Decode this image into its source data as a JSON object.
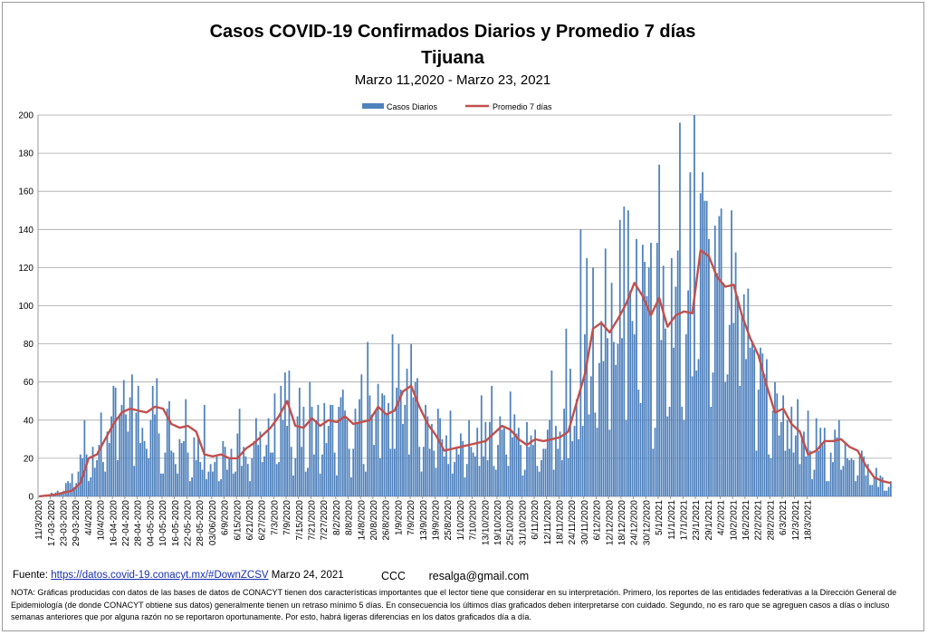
{
  "header": {
    "title_line1": "Casos COVID-19  Confirmados Diarios y Promedio 7 días",
    "title_line2": "Tijuana",
    "subtitle": "Marzo 11,2020 - Marzo 23, 2021"
  },
  "footer": {
    "source_label": "Fuente:",
    "source_link": "https://datos.covid-19.conacyt.mx/#DownZCSV",
    "source_date": "Marzo 24, 2021",
    "credit_initials": "CCC",
    "credit_email": "resalga@gmail.com",
    "note": "NOTA: Gráficas producidas con datos de las bases de datos de CONACYT tienen dos características importantes que el lector tiene que considerar en su interpretación. Primero, los reportes de las entidades federativas a la Dirección General de Epidemiología (de donde CONACYT obtiene sus datos) generalmente tienen un retraso mínimo 5 días. En consecuencia los últimos días graficados deben interpretarse con cuidado. Segundo, no es raro que se agreguen casos a días o incluso semanas anteriores que por alguna razón no se reportaron oportunamente. Por esto, habrá ligeras diferencias en los datos graficados día a día."
  },
  "colors": {
    "bars": "#4f81bd",
    "line": "#c0504d",
    "grid": "#a6a6a6"
  },
  "chart_data": {
    "type": "bar",
    "title": "Casos COVID-19  Confirmados Diarios y Promedio 7 días",
    "subtitle": "Marzo 11,2020 - Marzo 23, 2021",
    "xlabel": "",
    "ylabel": "",
    "ylim": [
      0,
      200
    ],
    "yticks": [
      0,
      20,
      40,
      60,
      80,
      100,
      120,
      140,
      160,
      180,
      200
    ],
    "grid": true,
    "legend_position": "top-center",
    "x_start": "2020-03-11",
    "x_end": "2021-03-23",
    "x_tick_labels": [
      "11/3/2020",
      "17-03-2020",
      "23-03-2020",
      "29-03-2020",
      "4/4/2020",
      "10/4/2020",
      "16-04-2020",
      "22-04-2020",
      "28-04-2020",
      "04-05-2020",
      "10-05-2020",
      "16-05-2020",
      "22-05-2020",
      "28-05-2020",
      "03/06/2020",
      "6/9/2020",
      "6/15/2020",
      "6/21/2020",
      "6/27/2020",
      "7/3/2020",
      "7/9/2020",
      "7/15/2020",
      "7/21/2020",
      "7/27/2020",
      "8/2/2020",
      "8/8/2020",
      "14/8/2020",
      "20/8/2020",
      "26/8/2020",
      "1/9/2020",
      "7/9/2020",
      "13/9/2020",
      "19/9/2020",
      "25/8/2020",
      "1/10/2020",
      "7/10/2020",
      "13/10/2020",
      "19/10/2020",
      "25/10/2020",
      "31/10/2020",
      "6/11/2020",
      "12/11/2020",
      "18/11/2020",
      "24/11/2020",
      "30/11/2020",
      "6/12/2020",
      "12/12/2020",
      "18/12/2020",
      "24/12/2020",
      "30/12/2020",
      "5/1/2021",
      "11/1/2021",
      "17/1/2021",
      "23/1/2021",
      "29/1/2021",
      "4/2/2021",
      "10/2/2021",
      "16/2/2021",
      "22/2/2021",
      "28/2/2021",
      "6/3/2021",
      "12/3/2021",
      "18/3/2021"
    ],
    "x_tick_interval_days": 6,
    "series": [
      {
        "name": "Casos Diarios",
        "type": "bar",
        "anchors": [
          [
            0,
            0
          ],
          [
            4,
            1
          ],
          [
            8,
            2
          ],
          [
            12,
            4
          ],
          [
            16,
            9
          ],
          [
            20,
            18
          ],
          [
            24,
            26
          ],
          [
            28,
            27
          ],
          [
            32,
            36
          ],
          [
            36,
            42
          ],
          [
            40,
            45
          ],
          [
            44,
            46
          ],
          [
            48,
            44
          ],
          [
            52,
            44
          ],
          [
            56,
            45
          ],
          [
            60,
            37
          ],
          [
            64,
            38
          ],
          [
            68,
            34
          ],
          [
            72,
            33
          ],
          [
            76,
            28
          ],
          [
            80,
            22
          ],
          [
            84,
            21
          ],
          [
            88,
            22
          ],
          [
            92,
            20
          ],
          [
            96,
            25
          ],
          [
            100,
            27
          ],
          [
            104,
            30
          ],
          [
            108,
            34
          ],
          [
            112,
            39
          ],
          [
            116,
            42
          ],
          [
            120,
            48
          ],
          [
            124,
            36
          ],
          [
            128,
            35
          ],
          [
            132,
            39
          ],
          [
            136,
            39
          ],
          [
            140,
            40
          ],
          [
            144,
            40
          ],
          [
            148,
            42
          ],
          [
            152,
            41
          ],
          [
            156,
            38
          ],
          [
            160,
            40
          ],
          [
            164,
            48
          ],
          [
            168,
            44
          ],
          [
            172,
            44
          ],
          [
            176,
            54
          ],
          [
            180,
            58
          ],
          [
            184,
            47
          ],
          [
            188,
            39
          ],
          [
            192,
            33
          ],
          [
            196,
            26
          ],
          [
            200,
            25
          ],
          [
            204,
            26
          ],
          [
            208,
            29
          ],
          [
            212,
            29
          ],
          [
            216,
            28
          ],
          [
            220,
            32
          ],
          [
            224,
            37
          ],
          [
            228,
            36
          ],
          [
            232,
            31
          ],
          [
            236,
            28
          ],
          [
            240,
            31
          ],
          [
            244,
            29
          ],
          [
            248,
            30
          ],
          [
            252,
            31
          ],
          [
            256,
            35
          ],
          [
            260,
            48
          ],
          [
            264,
            64
          ],
          [
            268,
            88
          ],
          [
            272,
            92
          ],
          [
            276,
            84
          ],
          [
            280,
            92
          ],
          [
            284,
            103
          ],
          [
            288,
            113
          ],
          [
            292,
            108
          ],
          [
            296,
            96
          ],
          [
            300,
            105
          ],
          [
            304,
            90
          ],
          [
            308,
            94
          ],
          [
            312,
            99
          ],
          [
            316,
            100
          ],
          [
            320,
            128
          ],
          [
            324,
            128
          ],
          [
            328,
            120
          ],
          [
            332,
            111
          ],
          [
            336,
            110
          ],
          [
            340,
            95
          ],
          [
            344,
            83
          ],
          [
            348,
            74
          ],
          [
            352,
            59
          ],
          [
            356,
            46
          ],
          [
            360,
            44
          ],
          [
            364,
            38
          ],
          [
            368,
            28
          ],
          [
            372,
            22
          ],
          [
            376,
            25
          ],
          [
            380,
            30
          ],
          [
            384,
            28
          ],
          [
            388,
            29
          ],
          [
            392,
            26
          ],
          [
            396,
            23
          ],
          [
            400,
            16
          ],
          [
            404,
            11
          ],
          [
            408,
            8
          ],
          [
            412,
            7
          ]
        ],
        "peaks": [
          [
            22,
            40
          ],
          [
            39,
            43
          ],
          [
            45,
            64
          ],
          [
            48,
            58
          ],
          [
            57,
            62
          ],
          [
            63,
            50
          ],
          [
            71,
            51
          ],
          [
            80,
            48
          ],
          [
            97,
            46
          ],
          [
            114,
            54
          ],
          [
            121,
            66
          ],
          [
            126,
            57
          ],
          [
            131,
            60
          ],
          [
            147,
            56
          ],
          [
            156,
            64
          ],
          [
            159,
            81
          ],
          [
            164,
            59
          ],
          [
            171,
            85
          ],
          [
            174,
            80
          ],
          [
            178,
            67
          ],
          [
            188,
            42
          ],
          [
            193,
            46
          ],
          [
            199,
            45
          ],
          [
            214,
            53
          ],
          [
            219,
            58
          ],
          [
            228,
            55
          ],
          [
            236,
            39
          ],
          [
            248,
            66
          ],
          [
            255,
            88
          ],
          [
            257,
            67
          ],
          [
            262,
            140
          ],
          [
            265,
            125
          ],
          [
            268,
            120
          ],
          [
            274,
            130
          ],
          [
            277,
            112
          ],
          [
            281,
            145
          ],
          [
            283,
            152
          ],
          [
            285,
            150
          ],
          [
            289,
            135
          ],
          [
            292,
            132
          ],
          [
            295,
            120
          ],
          [
            300,
            174
          ],
          [
            302,
            121
          ],
          [
            306,
            125
          ],
          [
            310,
            196
          ],
          [
            315,
            170
          ],
          [
            317,
            200
          ],
          [
            321,
            170
          ],
          [
            323,
            155
          ],
          [
            328,
            117
          ],
          [
            331,
            112
          ],
          [
            337,
            128
          ],
          [
            340,
            95
          ],
          [
            346,
            77
          ],
          [
            351,
            64
          ],
          [
            360,
            53
          ],
          [
            367,
            51
          ],
          [
            372,
            45
          ],
          [
            376,
            41
          ],
          [
            380,
            36
          ],
          [
            386,
            31
          ],
          [
            393,
            20
          ],
          [
            405,
            15
          ]
        ]
      },
      {
        "name": "Promedio 7 días",
        "type": "line",
        "points": [
          [
            0,
            0
          ],
          [
            4,
            0.5
          ],
          [
            8,
            1
          ],
          [
            12,
            2
          ],
          [
            16,
            3
          ],
          [
            20,
            7
          ],
          [
            24,
            20
          ],
          [
            28,
            22
          ],
          [
            32,
            30
          ],
          [
            36,
            38
          ],
          [
            40,
            44
          ],
          [
            44,
            46
          ],
          [
            48,
            45
          ],
          [
            52,
            44
          ],
          [
            56,
            47
          ],
          [
            60,
            46
          ],
          [
            64,
            38
          ],
          [
            68,
            36
          ],
          [
            72,
            37
          ],
          [
            76,
            34
          ],
          [
            80,
            22
          ],
          [
            84,
            21
          ],
          [
            88,
            22
          ],
          [
            92,
            20
          ],
          [
            96,
            20
          ],
          [
            100,
            25
          ],
          [
            104,
            28
          ],
          [
            108,
            32
          ],
          [
            112,
            36
          ],
          [
            116,
            42
          ],
          [
            120,
            50
          ],
          [
            124,
            37
          ],
          [
            128,
            36
          ],
          [
            132,
            41
          ],
          [
            136,
            37
          ],
          [
            140,
            40
          ],
          [
            144,
            39
          ],
          [
            148,
            42
          ],
          [
            152,
            38
          ],
          [
            156,
            39
          ],
          [
            160,
            40
          ],
          [
            164,
            47
          ],
          [
            168,
            43
          ],
          [
            172,
            45
          ],
          [
            176,
            55
          ],
          [
            180,
            58
          ],
          [
            184,
            47
          ],
          [
            188,
            38
          ],
          [
            192,
            32
          ],
          [
            196,
            24
          ],
          [
            200,
            25
          ],
          [
            204,
            26
          ],
          [
            208,
            27
          ],
          [
            212,
            28
          ],
          [
            216,
            29
          ],
          [
            220,
            33
          ],
          [
            224,
            37
          ],
          [
            228,
            35
          ],
          [
            232,
            30
          ],
          [
            236,
            27
          ],
          [
            240,
            30
          ],
          [
            244,
            29
          ],
          [
            248,
            30
          ],
          [
            252,
            31
          ],
          [
            256,
            34
          ],
          [
            260,
            49
          ],
          [
            264,
            64
          ],
          [
            268,
            88
          ],
          [
            272,
            91
          ],
          [
            276,
            86
          ],
          [
            280,
            93
          ],
          [
            284,
            101
          ],
          [
            288,
            112
          ],
          [
            292,
            105
          ],
          [
            296,
            95
          ],
          [
            300,
            104
          ],
          [
            304,
            89
          ],
          [
            308,
            95
          ],
          [
            312,
            97
          ],
          [
            316,
            96
          ],
          [
            320,
            129
          ],
          [
            324,
            126
          ],
          [
            328,
            115
          ],
          [
            332,
            110
          ],
          [
            336,
            111
          ],
          [
            340,
            95
          ],
          [
            344,
            83
          ],
          [
            348,
            74
          ],
          [
            352,
            58
          ],
          [
            356,
            44
          ],
          [
            360,
            46
          ],
          [
            364,
            38
          ],
          [
            368,
            34
          ],
          [
            372,
            22
          ],
          [
            376,
            24
          ],
          [
            380,
            29
          ],
          [
            384,
            29
          ],
          [
            388,
            30
          ],
          [
            392,
            26
          ],
          [
            396,
            24
          ],
          [
            400,
            16
          ],
          [
            404,
            10
          ],
          [
            408,
            8
          ],
          [
            412,
            7
          ]
        ]
      }
    ]
  }
}
